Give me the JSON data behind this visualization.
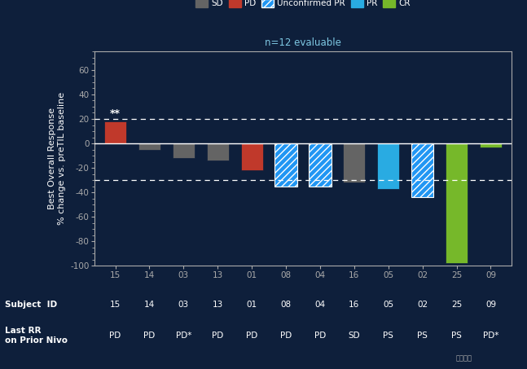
{
  "background_color": "#0e1f3b",
  "plot_bg_color": "#0e1f3b",
  "title_text": "n=12 evaluable",
  "title_color": "#7ec8e3",
  "ylabel": "Best Overall Response\n% change vs. preTIL baseline",
  "subjects": [
    "15",
    "14",
    "03",
    "13",
    "01",
    "08",
    "04",
    "16",
    "05",
    "02",
    "25",
    "09"
  ],
  "prior_nivo": [
    "PD",
    "PD",
    "PD*",
    "PD",
    "PD",
    "PD",
    "PD",
    "SD",
    "PS",
    "PS",
    "PS",
    "PD*"
  ],
  "values": [
    18,
    -5,
    -12,
    -14,
    -22,
    -35,
    -35,
    -32,
    -37,
    -44,
    -98,
    -3
  ],
  "bar_types": [
    "PD",
    "SD",
    "SD",
    "SD",
    "PD",
    "Unconfirmed PR",
    "Unconfirmed PR",
    "SD",
    "PR",
    "Unconfirmed PR",
    "CR",
    "CR"
  ],
  "colors": {
    "SD": "#646464",
    "PD": "#c0392b",
    "Unconfirmed PR": "#2196f3",
    "PR": "#29abe2",
    "CR": "#76b82a"
  },
  "ylim": [
    -100,
    75
  ],
  "yticks": [
    -100,
    -80,
    -60,
    -40,
    -20,
    0,
    20,
    40,
    60
  ],
  "dashed_lines": [
    20,
    -30
  ],
  "solid_line": 0,
  "text_color": "#ffffff",
  "axis_color": "#aaaaaa",
  "legend_entries": [
    {
      "label": "SD",
      "color": "#646464",
      "hatch": null
    },
    {
      "label": "PD",
      "color": "#c0392b",
      "hatch": null
    },
    {
      "label": "Unconfirmed PR",
      "color": "#2196f3",
      "hatch": "////"
    },
    {
      "label": "PR",
      "color": "#29abe2",
      "hatch": null
    },
    {
      "label": "CR",
      "color": "#76b82a",
      "hatch": null
    }
  ],
  "star_annotation": "**"
}
